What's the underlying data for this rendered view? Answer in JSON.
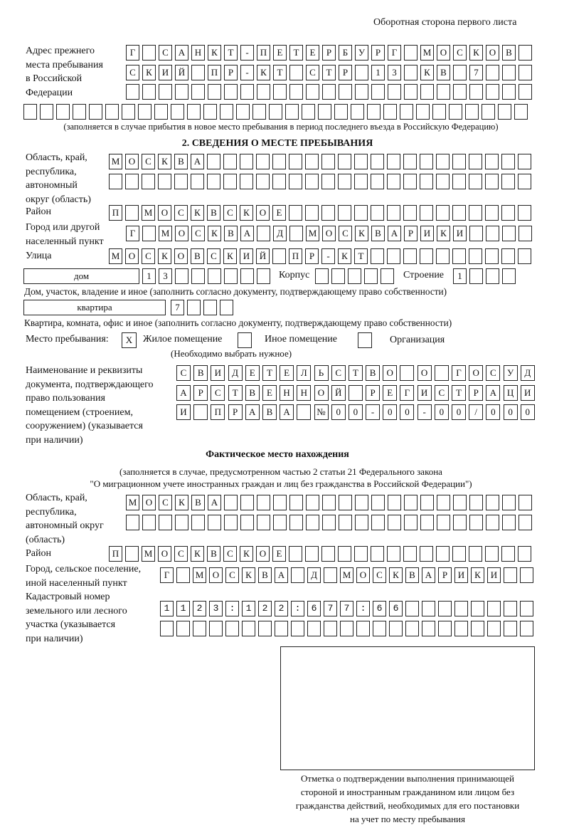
{
  "header": "Оборотная сторона первого листа",
  "prev_address": {
    "label": [
      "Адрес прежнего",
      "места пребывания",
      "в Российской",
      "Федерации"
    ],
    "rows": [
      "Г САНКТ-ПЕТЕРБУРГ МОСКОВ",
      "СКИЙ ПР-КТ СТР 13 КВ 7",
      "",
      ""
    ],
    "note": "(заполняется в случае прибытия в новое место пребывания в период последнего въезда в Российскую Федерацию)"
  },
  "section2": {
    "title": "2. СВЕДЕНИЯ О МЕСТЕ ПРЕБЫВАНИЯ",
    "region_label": [
      "Область, край,",
      "республика,",
      "автономный",
      "округ (область)"
    ],
    "region_rows": [
      "МОСКВА",
      ""
    ],
    "district_label": "Район",
    "district": "П МОСКВСКОЕ",
    "city_label": [
      "Город или другой",
      "населенный пункт"
    ],
    "city": "Г МОСКВА Д МОСКВАРИКИ",
    "street_label": "Улица",
    "street": "МОСКОВСКИЙ ПР-КТ",
    "house_type": "дом",
    "house": "13",
    "korpus_label": "Корпус",
    "korpus": "",
    "building_label": "Строение",
    "building": "1",
    "house_note": "Дом, участок, владение и иное (заполнить согласно документу, подтверждающему право собственности)",
    "flat_type": "квартира",
    "flat": "7",
    "flat_note": "Квартира, комната, офис и иное (заполнить согласно документу, подтверждающему право собственности)",
    "place_label": "Место пребывания:",
    "place_options": [
      {
        "label": "Жилое помещение",
        "mark": "X"
      },
      {
        "label": "Иное помещение",
        "mark": ""
      },
      {
        "label": "Организация",
        "mark": ""
      }
    ],
    "place_note": "(Необходимо выбрать нужное)",
    "doc_label": [
      "Наименование и реквизиты",
      "документа, подтверждающего",
      "право пользования",
      "помещением (строением,",
      "сооружением) (указывается",
      "при наличии)"
    ],
    "doc_rows": [
      "СВИДЕТЕЛЬСТВО О ГОСУД",
      "АРСТВЕННОЙ РЕГИСТРАЦИ",
      "И ПРАВА №00-00-00/000"
    ]
  },
  "actual": {
    "title": "Фактическое место нахождения",
    "note": [
      "(заполняется в случае, предусмотренном частью 2 статьи 21 Федерального закона",
      "\"О миграционном учете иностранных граждан и лиц без гражданства в Российской Федерации\")"
    ],
    "region_label": [
      "Область, край,",
      "республика,",
      "автономный округ",
      "(область)"
    ],
    "region_rows": [
      "МОСКВА",
      ""
    ],
    "district_label": "Район",
    "district": "П МОСКВСКОЕ",
    "city_label": [
      "Город, сельское поселение,",
      "иной населенный пункт"
    ],
    "city": "Г МОСКВА Д МОСКВАРИКИ",
    "cadastral_label": [
      "Кадастровый номер",
      "земельного или лесного",
      "участка (указывается",
      "при наличии)"
    ],
    "cadastral_rows": [
      "1123:122:677:66",
      ""
    ]
  },
  "stamp": {
    "caption": [
      "Отметка о подтверждении выполнения принимающей",
      "стороной и иностранным гражданином или лицом без",
      "гражданства действий, необходимых для его постановки",
      "на учет по месту пребывания"
    ]
  }
}
